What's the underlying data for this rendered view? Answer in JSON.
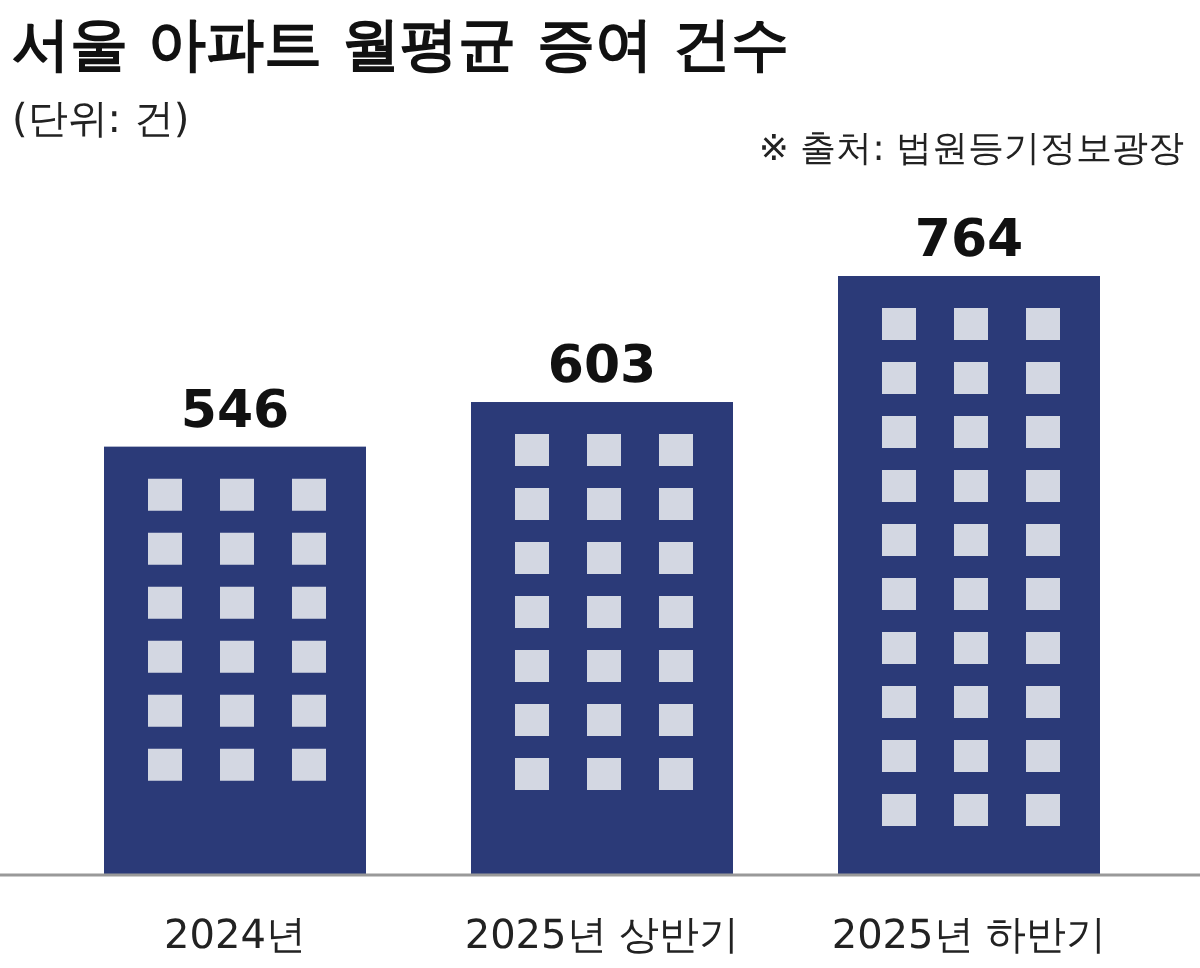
{
  "chart_data": {
    "type": "bar",
    "title": "서울 아파트 월평균 증여 건수",
    "subtitle": "(단위: 건)",
    "annotations": [
      "※ 출처: 법원등기정보광장"
    ],
    "categories": [
      "2024년",
      "2025년 상반기",
      "2025년 하반기"
    ],
    "values": [
      546,
      603,
      764
    ],
    "color": "#2b3a78",
    "data_labels": true
  }
}
